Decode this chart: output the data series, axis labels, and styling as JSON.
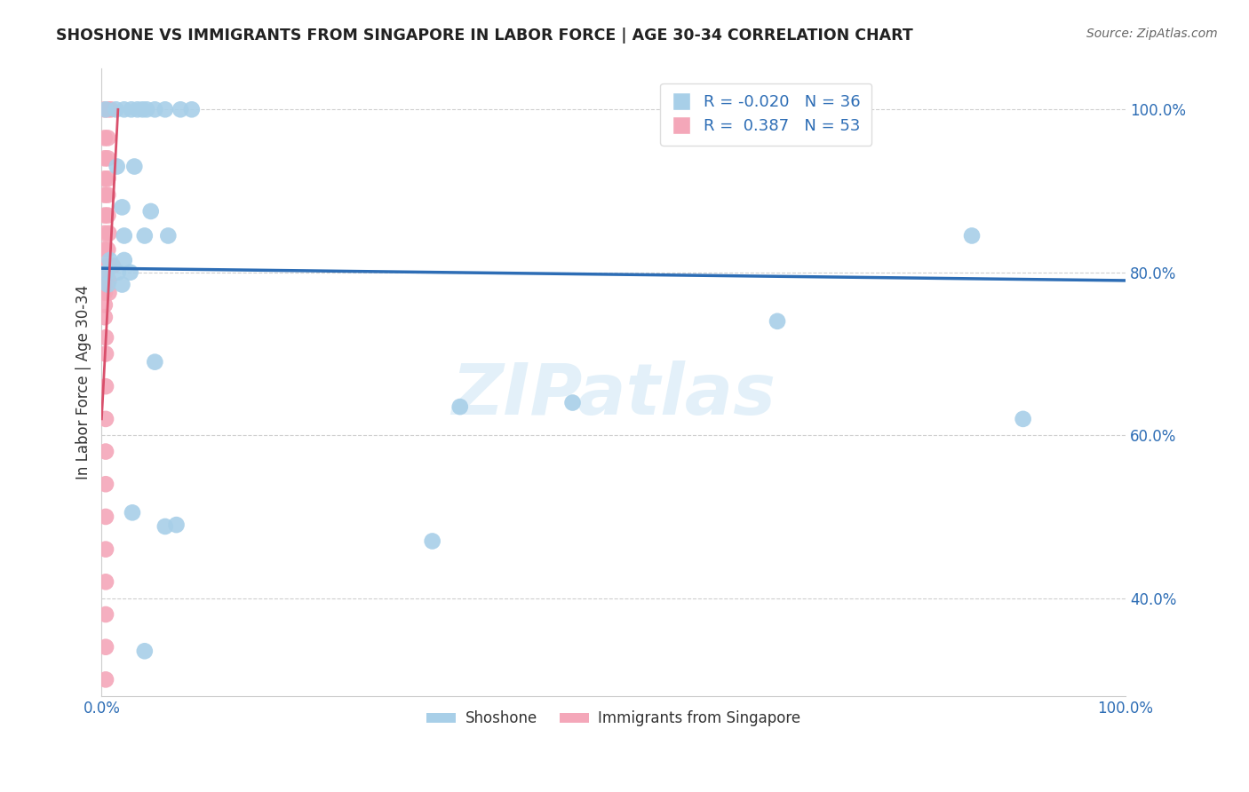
{
  "title": "SHOSHONE VS IMMIGRANTS FROM SINGAPORE IN LABOR FORCE | AGE 30-34 CORRELATION CHART",
  "source": "Source: ZipAtlas.com",
  "ylabel": "In Labor Force | Age 30-34",
  "xlim": [
    0.0,
    1.0
  ],
  "ylim": [
    0.28,
    1.05
  ],
  "ytick_vals": [
    0.4,
    0.6,
    0.8,
    1.0
  ],
  "ytick_labels": [
    "40.0%",
    "60.0%",
    "80.0%",
    "100.0%"
  ],
  "xtick_vals": [
    0.0,
    0.1,
    0.2,
    0.3,
    0.4,
    0.5,
    0.6,
    0.7,
    0.8,
    0.9,
    1.0
  ],
  "xtick_labels": [
    "0.0%",
    "",
    "",
    "",
    "",
    "",
    "",
    "",
    "",
    "",
    "100.0%"
  ],
  "blue_R": -0.02,
  "blue_N": 36,
  "pink_R": 0.387,
  "pink_N": 53,
  "blue_color": "#a8cfe8",
  "pink_color": "#f4a7b9",
  "line_color": "#2d6db5",
  "pink_trend_color": "#d94f6b",
  "watermark": "ZIPatlas",
  "blue_points": [
    [
      0.004,
      1.0
    ],
    [
      0.014,
      1.0
    ],
    [
      0.022,
      1.0
    ],
    [
      0.029,
      1.0
    ],
    [
      0.035,
      1.0
    ],
    [
      0.04,
      1.0
    ],
    [
      0.044,
      1.0
    ],
    [
      0.052,
      1.0
    ],
    [
      0.062,
      1.0
    ],
    [
      0.077,
      1.0
    ],
    [
      0.088,
      1.0
    ],
    [
      0.015,
      0.93
    ],
    [
      0.032,
      0.93
    ],
    [
      0.02,
      0.88
    ],
    [
      0.048,
      0.875
    ],
    [
      0.022,
      0.845
    ],
    [
      0.042,
      0.845
    ],
    [
      0.065,
      0.845
    ],
    [
      0.008,
      0.815
    ],
    [
      0.022,
      0.815
    ],
    [
      0.005,
      0.8
    ],
    [
      0.016,
      0.8
    ],
    [
      0.028,
      0.8
    ],
    [
      0.006,
      0.785
    ],
    [
      0.02,
      0.785
    ],
    [
      0.052,
      0.69
    ],
    [
      0.66,
      0.74
    ],
    [
      0.85,
      0.845
    ],
    [
      0.35,
      0.635
    ],
    [
      0.46,
      0.64
    ],
    [
      0.9,
      0.62
    ],
    [
      0.03,
      0.505
    ],
    [
      0.062,
      0.488
    ],
    [
      0.073,
      0.49
    ],
    [
      0.323,
      0.47
    ],
    [
      0.042,
      0.335
    ]
  ],
  "pink_points": [
    [
      0.003,
      1.0
    ],
    [
      0.006,
      1.0
    ],
    [
      0.009,
      1.0
    ],
    [
      0.003,
      0.965
    ],
    [
      0.006,
      0.965
    ],
    [
      0.003,
      0.94
    ],
    [
      0.006,
      0.94
    ],
    [
      0.003,
      0.915
    ],
    [
      0.006,
      0.915
    ],
    [
      0.003,
      0.895
    ],
    [
      0.006,
      0.895
    ],
    [
      0.003,
      0.87
    ],
    [
      0.006,
      0.87
    ],
    [
      0.003,
      0.848
    ],
    [
      0.007,
      0.848
    ],
    [
      0.003,
      0.828
    ],
    [
      0.006,
      0.828
    ],
    [
      0.003,
      0.808
    ],
    [
      0.007,
      0.808
    ],
    [
      0.011,
      0.808
    ],
    [
      0.003,
      0.79
    ],
    [
      0.007,
      0.79
    ],
    [
      0.003,
      0.775
    ],
    [
      0.007,
      0.775
    ],
    [
      0.003,
      0.76
    ],
    [
      0.003,
      0.745
    ],
    [
      0.004,
      0.72
    ],
    [
      0.004,
      0.7
    ],
    [
      0.004,
      0.66
    ],
    [
      0.004,
      0.62
    ],
    [
      0.004,
      0.58
    ],
    [
      0.004,
      0.54
    ],
    [
      0.004,
      0.5
    ],
    [
      0.004,
      0.46
    ],
    [
      0.004,
      0.42
    ],
    [
      0.004,
      0.38
    ],
    [
      0.004,
      0.34
    ],
    [
      0.004,
      0.3
    ]
  ],
  "blue_trend_x": [
    0.0,
    1.0
  ],
  "blue_trend_y": [
    0.805,
    0.79
  ],
  "pink_trend_x": [
    0.0,
    0.016
  ],
  "pink_trend_y": [
    0.62,
    1.0
  ]
}
